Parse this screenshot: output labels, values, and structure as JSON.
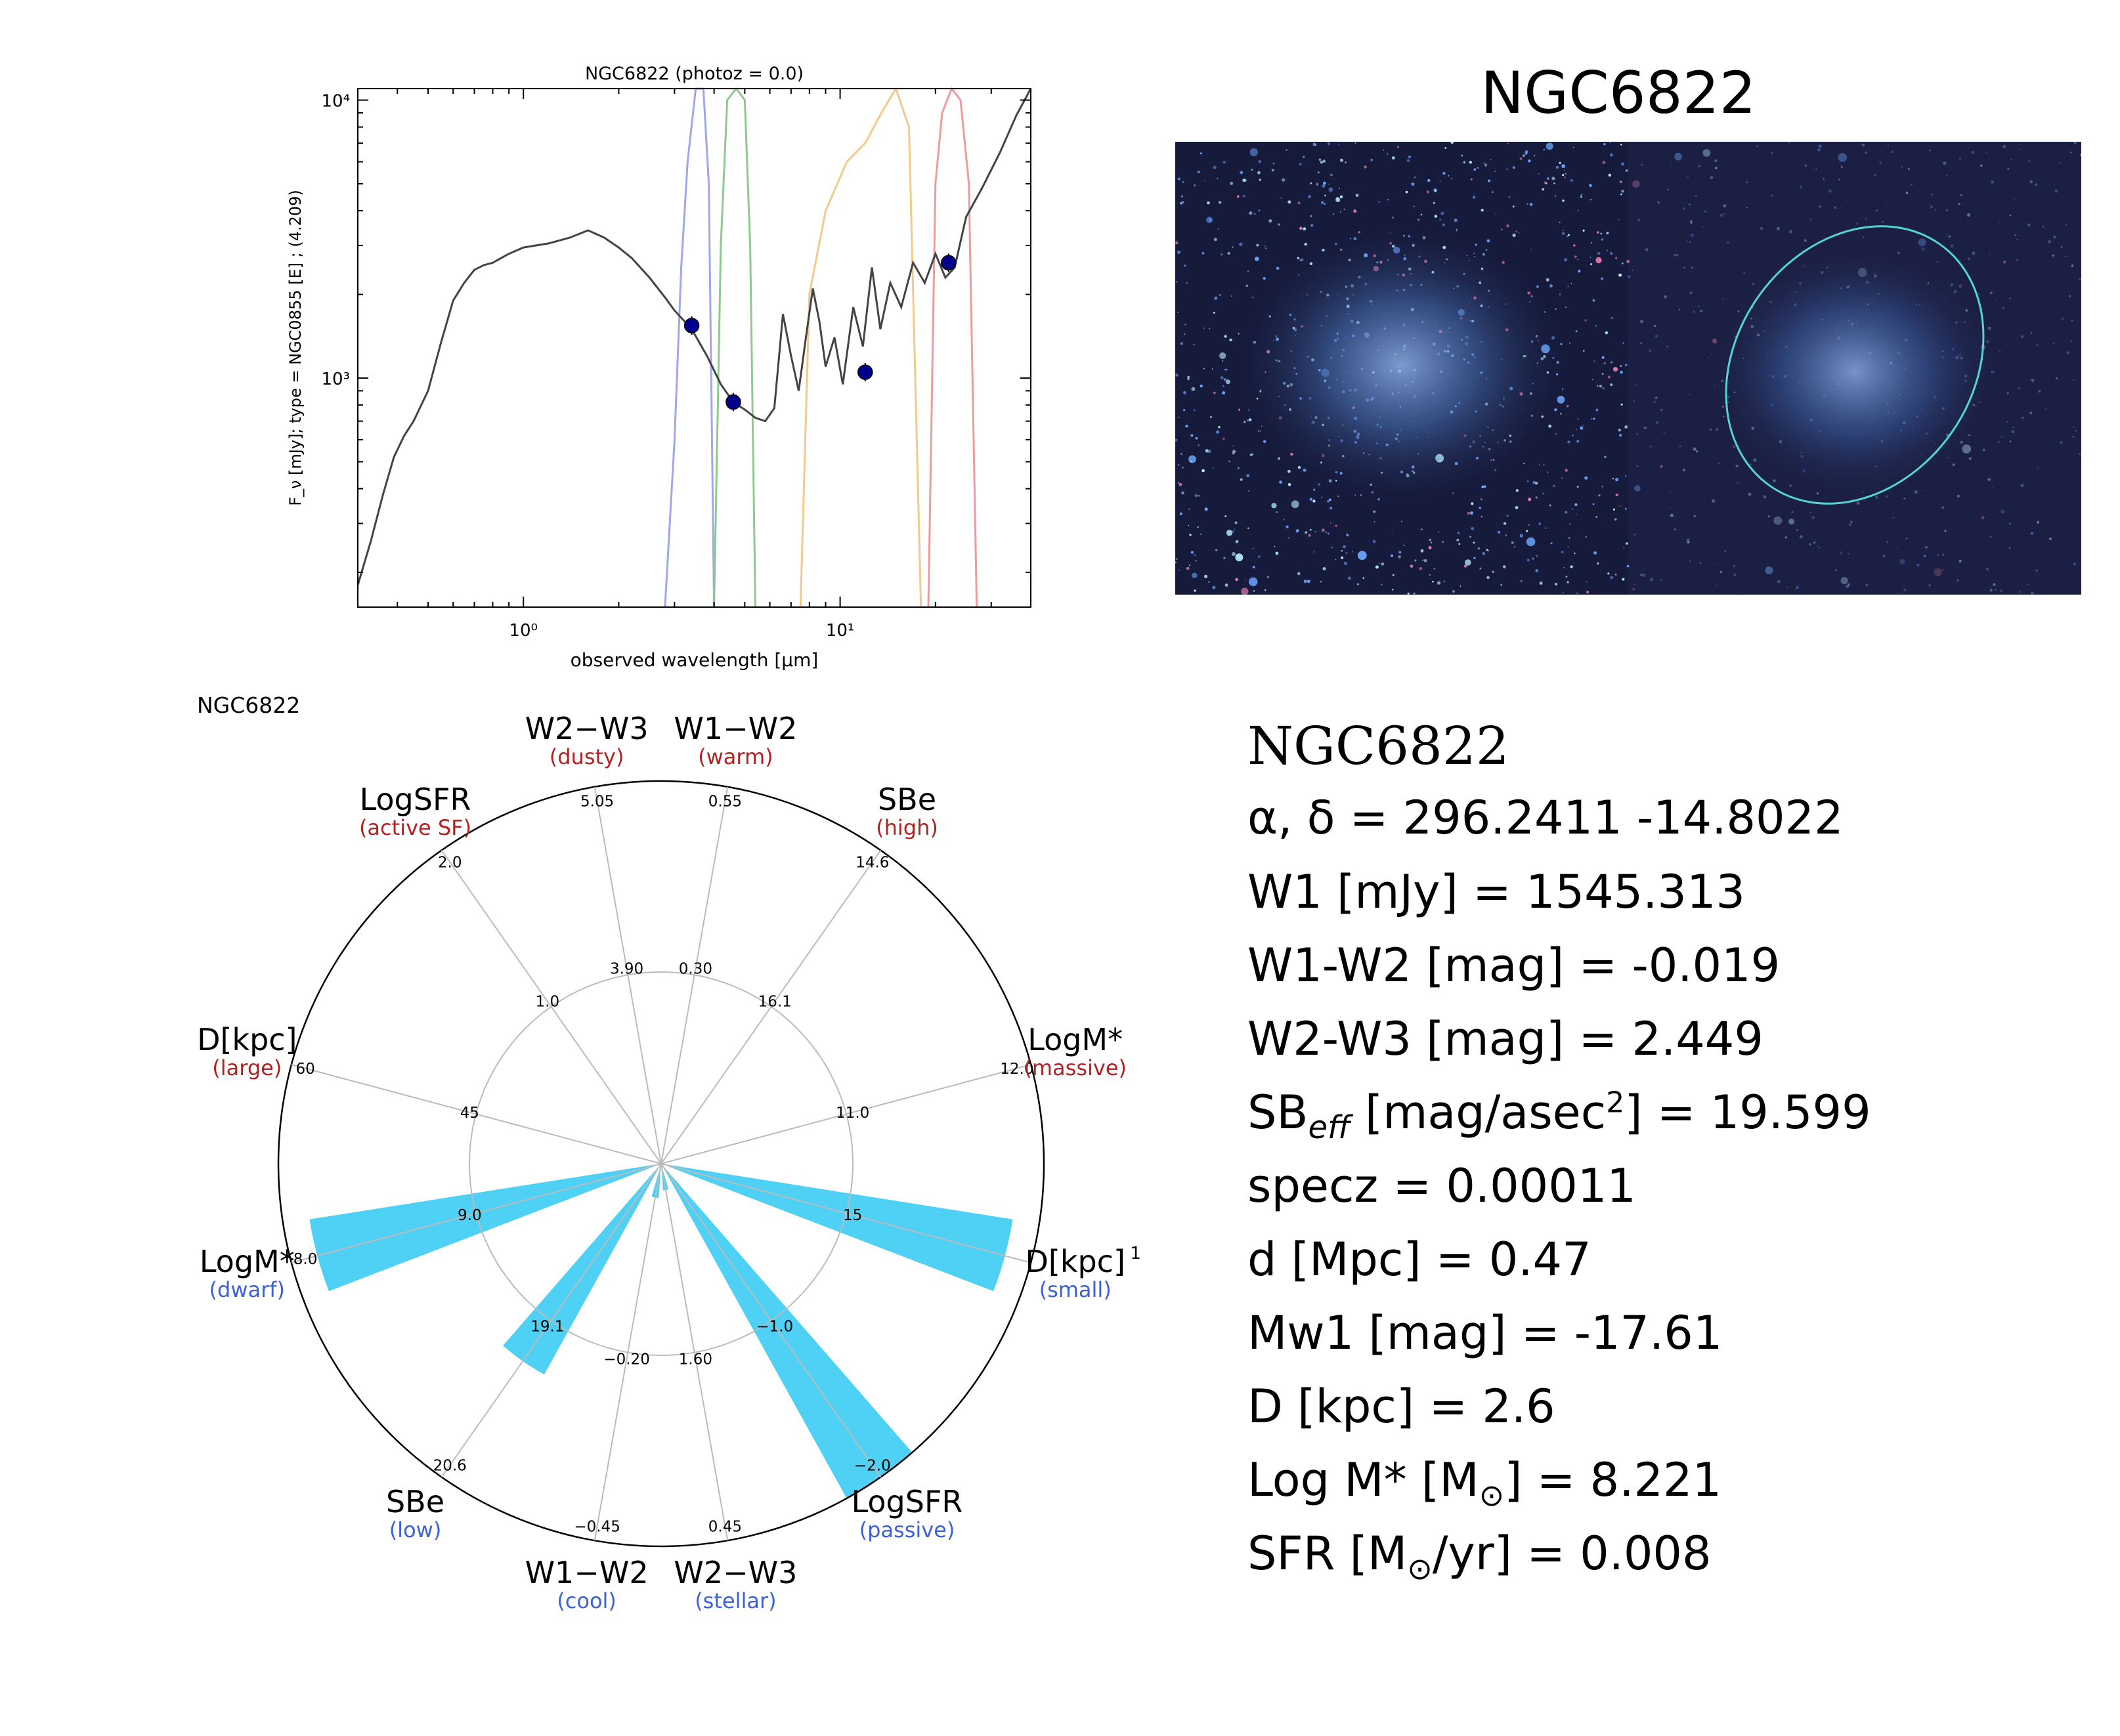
{
  "chart_data": [
    {
      "type": "line",
      "title": "NGC6822 (photoz = 0.0)",
      "xlabel": "observed wavelength [μm]",
      "ylabel": "F_ν [mJy];  type = NGC0855 [E] ; (4.209)",
      "xscale": "log",
      "yscale": "log",
      "xlim": [
        0.3,
        40
      ],
      "ylim": [
        150,
        11000
      ],
      "x_ticks": [
        {
          "value": 1,
          "label": "10⁰"
        },
        {
          "value": 10,
          "label": "10¹"
        }
      ],
      "y_ticks": [
        {
          "value": 1000,
          "label": "10³"
        },
        {
          "value": 10000,
          "label": "10⁴"
        }
      ],
      "series": [
        {
          "role": "model",
          "color": "#444444",
          "x": [
            0.3,
            0.33,
            0.36,
            0.39,
            0.42,
            0.45,
            0.5,
            0.55,
            0.6,
            0.65,
            0.7,
            0.75,
            0.8,
            0.9,
            1.0,
            1.2,
            1.4,
            1.6,
            1.8,
            2.0,
            2.2,
            2.5,
            2.8,
            3.0,
            3.4,
            3.8,
            4.2,
            4.6,
            5.0,
            5.4,
            5.8,
            6.2,
            6.6,
            7.0,
            7.4,
            7.8,
            8.2,
            8.6,
            9.0,
            9.6,
            10.2,
            11.0,
            11.8,
            12.6,
            13.4,
            14.4,
            15.6,
            17.0,
            18.5,
            20.0,
            21.5,
            23.0,
            25.0,
            28.0,
            32.0,
            36.0,
            40.0
          ],
          "y": [
            180,
            260,
            380,
            520,
            620,
            700,
            900,
            1350,
            1900,
            2200,
            2450,
            2550,
            2600,
            2800,
            2950,
            3050,
            3200,
            3400,
            3200,
            2950,
            2700,
            2300,
            1950,
            1750,
            1500,
            1200,
            950,
            820,
            770,
            720,
            700,
            780,
            1700,
            1200,
            900,
            1400,
            2100,
            1600,
            1100,
            1400,
            950,
            1800,
            1300,
            2500,
            1500,
            2200,
            1800,
            2600,
            2200,
            2800,
            2300,
            2500,
            3800,
            4800,
            6500,
            8800,
            11000
          ]
        },
        {
          "role": "photometry",
          "color": "#00008b",
          "x": [
            3.4,
            4.6,
            12.0,
            22.0
          ],
          "y": [
            1545,
            820,
            1050,
            2600
          ]
        }
      ],
      "filters": [
        {
          "band": "W1",
          "color": "#9fa6ee",
          "x": [
            2.8,
            3.0,
            3.15,
            3.3,
            3.5,
            3.7,
            3.85,
            4.0
          ],
          "y": [
            150,
            600,
            2500,
            6000,
            11000,
            11000,
            5000,
            150
          ]
        },
        {
          "band": "W2",
          "color": "#8fc98f",
          "x": [
            4.0,
            4.2,
            4.4,
            4.7,
            5.0,
            5.2,
            5.4
          ],
          "y": [
            150,
            3000,
            10000,
            11000,
            10000,
            3000,
            150
          ]
        },
        {
          "band": "W3",
          "color": "#f4c98a",
          "x": [
            7.5,
            8.0,
            9.0,
            10.5,
            12.0,
            13.5,
            15.0,
            16.5,
            18.0
          ],
          "y": [
            150,
            2000,
            4000,
            6000,
            7000,
            9000,
            11000,
            8000,
            150
          ]
        },
        {
          "band": "W4",
          "color": "#ee9b9b",
          "x": [
            19.0,
            20.0,
            21.0,
            22.5,
            24.0,
            25.5,
            27.0
          ],
          "y": [
            150,
            5000,
            9000,
            11000,
            10000,
            5000,
            150
          ]
        }
      ]
    },
    {
      "type": "radar-bar",
      "title": "NGC6822",
      "axes": [
        {
          "label": "W1−W2",
          "sublabel": "(warm)",
          "sublabel_color": "#b22222",
          "angle_deg": 80,
          "rings": [
            "0.30",
            "0.55"
          ],
          "value": 0.0
        },
        {
          "label": "W2−W3",
          "sublabel": "(dusty)",
          "sublabel_color": "#b22222",
          "angle_deg": 100,
          "rings": [
            "3.90",
            "5.05"
          ],
          "value": 0.0
        },
        {
          "label": "LogSFR",
          "sublabel": "(active SF)",
          "sublabel_color": "#b22222",
          "angle_deg": 125,
          "rings": [
            "1.0",
            "2.0"
          ],
          "value": 0.0
        },
        {
          "label": "D[kpc]",
          "sublabel": "(large)",
          "sublabel_color": "#b22222",
          "angle_deg": 165,
          "rings": [
            "45",
            "60"
          ],
          "value": 0.0
        },
        {
          "label": "LogM*",
          "sublabel": "(dwarf)",
          "sublabel_color": "#3a62d6",
          "angle_deg": 195,
          "rings": [
            "9.0",
            "8.0"
          ],
          "value": 0.93
        },
        {
          "label": "SBe",
          "sublabel": "(low)",
          "sublabel_color": "#3a62d6",
          "angle_deg": 235,
          "rings": [
            "19.1",
            "20.6"
          ],
          "value": 0.63
        },
        {
          "label": "W1−W2",
          "sublabel": "(cool)",
          "sublabel_color": "#3a62d6",
          "angle_deg": 260,
          "rings": [
            "−0.20",
            "−0.45"
          ],
          "value": 0.09
        },
        {
          "label": "W2−W3",
          "sublabel": "(stellar)",
          "sublabel_color": "#3a62d6",
          "angle_deg": 280,
          "rings": [
            "1.60",
            "0.45"
          ],
          "value": 0.07
        },
        {
          "label": "LogSFR",
          "sublabel": "(passive)",
          "sublabel_color": "#3a62d6",
          "angle_deg": 305,
          "rings": [
            "−1.0",
            "−2.0"
          ],
          "value": 1.0
        },
        {
          "label": "D[kpc]",
          "sublabel": "(small)",
          "sublabel_color": "#3a62d6",
          "angle_deg": 345,
          "rings": [
            "15",
            ""
          ],
          "value": 0.93
        },
        {
          "label": "LogM*",
          "sublabel": "(massive)",
          "sublabel_color": "#b22222",
          "angle_deg": 15,
          "rings": [
            "11.0",
            "12.0"
          ],
          "value": 0.0
        },
        {
          "label": "SBe",
          "sublabel": "(high)",
          "sublabel_color": "#b22222",
          "angle_deg": 55,
          "rings": [
            "16.1",
            "14.6"
          ],
          "value": 0.0
        }
      ],
      "bar_color": "#4fd1f5",
      "footnote_mark": "1"
    }
  ],
  "image_panel": {
    "title": "NGC6822"
  },
  "info": {
    "title": "NGC6822",
    "coords": "α, δ = 296.2411 -14.8022",
    "w1": "W1 [mJy] = 1545.313",
    "w1w2": "W1-W2 [mag] = -0.019",
    "w2w3": "W2-W3 [mag] = 2.449",
    "sb_prefix": "SB",
    "sb_sub": "eff",
    "sb_mid": " [mag/asec",
    "sb_sup": "2",
    "sb_suffix": "] = 19.599",
    "specz": "specz = 0.00011",
    "dist": "d [Mpc] = 0.47",
    "mw1": "Mw1 [mag] = -17.61",
    "diam": "D [kpc] = 2.6",
    "logm_prefix": "Log M* [M",
    "logm_suffix": "] = 8.221",
    "sfr_prefix": "SFR [M",
    "sfr_suffix": "/yr] = 0.008",
    "sun_symbol": "⊙"
  }
}
